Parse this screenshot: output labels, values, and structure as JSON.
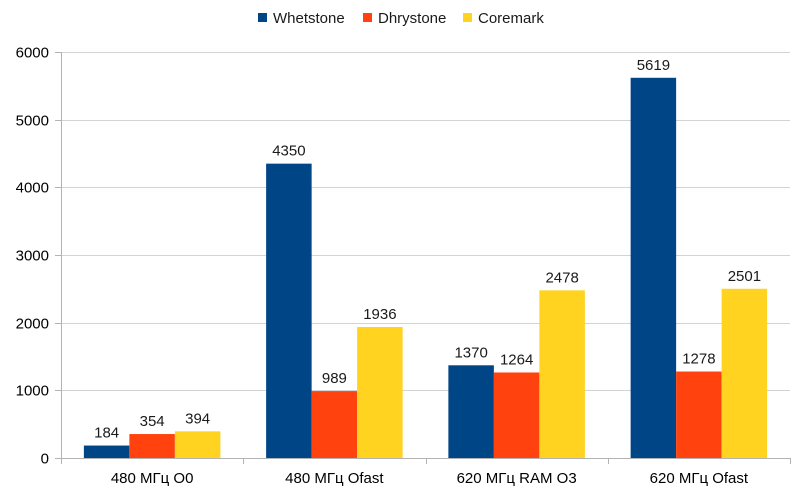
{
  "chart_data": {
    "type": "bar",
    "title": "",
    "xlabel": "",
    "ylabel": "",
    "categories": [
      "480 МГц O0",
      "480 МГц Ofast",
      "620 МГц RAM O3",
      "620 МГц Ofast"
    ],
    "series": [
      {
        "name": "Whetstone",
        "color": "#004586",
        "values": [
          184,
          4350,
          1370,
          5619
        ]
      },
      {
        "name": "Dhrystone",
        "color": "#ff420e",
        "values": [
          354,
          989,
          1264,
          1278
        ]
      },
      {
        "name": "Coremark",
        "color": "#ffd320",
        "values": [
          394,
          1936,
          2478,
          2501
        ]
      }
    ],
    "ylim": [
      0,
      6000
    ],
    "yticks": [
      0,
      1000,
      2000,
      3000,
      4000,
      5000,
      6000
    ],
    "grid": true,
    "legend_position": "top-center",
    "data_labels": true
  }
}
